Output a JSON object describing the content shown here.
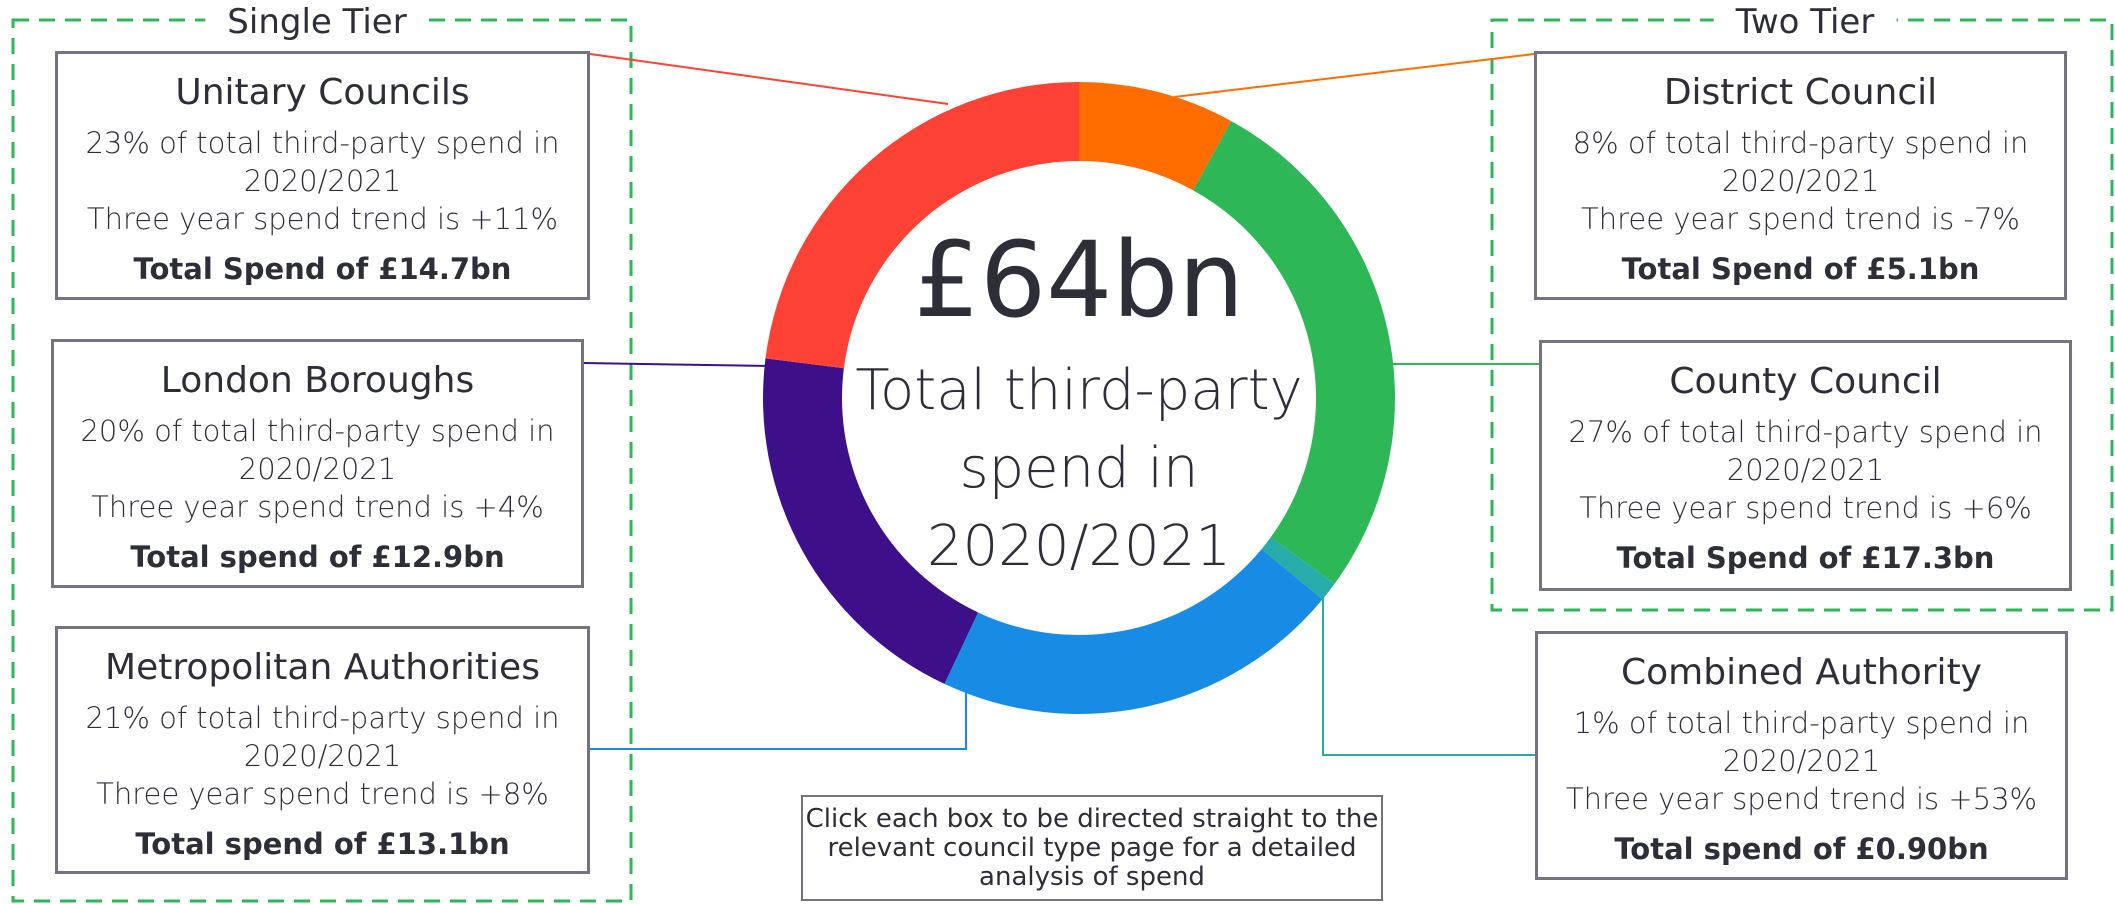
{
  "chart_data": {
    "type": "pie",
    "donut": true,
    "center_value": "£64bn",
    "center_text": "Total third-party spend in 2020/2021",
    "groups": [
      "Single Tier",
      "Two Tier"
    ],
    "categories": [
      "District Council",
      "County Council",
      "Combined Authority",
      "Metropolitan Authorities",
      "London Boroughs",
      "Unitary Councils"
    ],
    "values": [
      8,
      27,
      1,
      21,
      20,
      23
    ],
    "value_labels": [
      "8% of total third-party spend in 2020/2021",
      "27% of total third-party spend in 2020/2021",
      "1% of total third-party spend in 2020/2021",
      "21% of total third-party spend in 2020/2021",
      "20% of total third-party spend in 2020/2021",
      "23% of total third-party spend in 2020/2021"
    ],
    "trends": [
      "Three year spend trend is -7%",
      "Three year spend trend is +6%",
      "Three year spend trend is +53%",
      "Three year spend trend is +8%",
      "Three year spend trend is +4%",
      "Three year spend trend is +11%"
    ],
    "totals": [
      "Total Spend of £5.1bn",
      "Total Spend of £17.3bn",
      "Total spend of £0.90bn",
      "Total spend of £13.1bn",
      "Total spend of £12.9bn",
      "Total Spend of £14.7bn"
    ],
    "colors": [
      "#ff6d00",
      "#2db757",
      "#27acaa",
      "#188ce5",
      "#3d108a",
      "#ff4136"
    ],
    "note": "Click each box to be directed straight to the relevant council type page for a detailed analysis of spend"
  }
}
